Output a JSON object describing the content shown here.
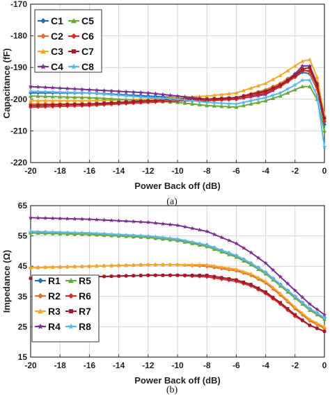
{
  "chart_data": [
    {
      "type": "line",
      "caption": "(a)",
      "xlabel": "Power Back off (dB)",
      "ylabel": "Capacitance (fF)",
      "xlim": [
        -20,
        0
      ],
      "ylim": [
        -220,
        -170
      ],
      "xticks": [
        -20,
        -18,
        -16,
        -14,
        -12,
        -10,
        -8,
        -6,
        -4,
        -2,
        0
      ],
      "yticks": [
        -170,
        -180,
        -190,
        -200,
        -210,
        -220
      ],
      "grid": true,
      "legend_position": "top-left",
      "series": [
        {
          "name": "C1",
          "color": "#1f6fb5",
          "marker": "diamond",
          "x": [
            -20,
            -16,
            -12,
            -10,
            -8,
            -6,
            -4,
            -3,
            -2,
            -1.5,
            -1,
            -0.5,
            0
          ],
          "y": [
            -198,
            -198,
            -199,
            -199.5,
            -200,
            -199.5,
            -197.5,
            -195.5,
            -193,
            -191.5,
            -192,
            -197,
            -208
          ]
        },
        {
          "name": "C2",
          "color": "#e0702a",
          "marker": "diamond",
          "x": [
            -20,
            -16,
            -12,
            -10,
            -8,
            -6,
            -4,
            -3,
            -2,
            -1.5,
            -1,
            -0.5,
            0
          ],
          "y": [
            -201.5,
            -201.5,
            -201,
            -200.5,
            -200,
            -199.5,
            -197,
            -195,
            -192,
            -190.5,
            -191.5,
            -197,
            -206
          ]
        },
        {
          "name": "C3",
          "color": "#f0a92e",
          "marker": "triangle",
          "x": [
            -20,
            -16,
            -12,
            -10,
            -8,
            -6,
            -4,
            -3,
            -2,
            -1.5,
            -1,
            -0.5,
            0
          ],
          "y": [
            -200.5,
            -200.5,
            -200,
            -199.5,
            -199,
            -198,
            -195,
            -192.5,
            -189.5,
            -188,
            -187.5,
            -193,
            -205
          ]
        },
        {
          "name": "C4",
          "color": "#7b2f8f",
          "marker": "star",
          "x": [
            -20,
            -16,
            -12,
            -10,
            -8,
            -6,
            -4,
            -3,
            -2,
            -1.5,
            -1,
            -0.5,
            0
          ],
          "y": [
            -196,
            -197,
            -198,
            -199,
            -200,
            -200,
            -198.5,
            -196,
            -192,
            -189.5,
            -189.5,
            -195,
            -207
          ]
        },
        {
          "name": "C5",
          "color": "#6aaa3a",
          "marker": "triangle",
          "x": [
            -20,
            -16,
            -12,
            -10,
            -8,
            -6,
            -4,
            -3,
            -2,
            -1.5,
            -1,
            -0.5,
            0
          ],
          "y": [
            -199,
            -199.5,
            -200.5,
            -201,
            -202,
            -202.5,
            -200.5,
            -199,
            -197,
            -196,
            -196,
            -200,
            -210
          ]
        },
        {
          "name": "C6",
          "color": "#d42a2a",
          "marker": "diamond",
          "x": [
            -20,
            -16,
            -12,
            -10,
            -8,
            -6,
            -4,
            -3,
            -2,
            -1.5,
            -1,
            -0.5,
            0
          ],
          "y": [
            -202.5,
            -202,
            -201,
            -200.5,
            -200.5,
            -200,
            -198,
            -196,
            -193,
            -191,
            -191,
            -196,
            -207
          ]
        },
        {
          "name": "C7",
          "color": "#9e1c2a",
          "marker": "square",
          "x": [
            -20,
            -16,
            -12,
            -10,
            -8,
            -6,
            -4,
            -3,
            -2,
            -1.5,
            -1,
            -0.5,
            0
          ],
          "y": [
            -202,
            -201.5,
            -200.5,
            -200,
            -200,
            -199.5,
            -197.5,
            -195.5,
            -192.5,
            -190.5,
            -190,
            -195.5,
            -206
          ]
        },
        {
          "name": "C8",
          "color": "#5cb8e6",
          "marker": "star",
          "x": [
            -20,
            -16,
            -12,
            -10,
            -8,
            -6,
            -4,
            -3,
            -2,
            -1.5,
            -1,
            -0.5,
            0
          ],
          "y": [
            -197.5,
            -198,
            -199.5,
            -200,
            -201,
            -201.5,
            -199.5,
            -198,
            -195.5,
            -194,
            -194,
            -199,
            -215
          ]
        }
      ]
    },
    {
      "type": "line",
      "caption": "(b)",
      "xlabel": "Power Back off (dB)",
      "ylabel": "Impedance (Ω)",
      "xlim": [
        -20,
        0
      ],
      "ylim": [
        15,
        65
      ],
      "xticks": [
        -20,
        -18,
        -16,
        -14,
        -12,
        -10,
        -8,
        -6,
        -4,
        -2,
        0
      ],
      "yticks": [
        15,
        25,
        35,
        45,
        55,
        65
      ],
      "grid": true,
      "legend_position": "bottom-left",
      "series": [
        {
          "name": "R1",
          "color": "#1f6fb5",
          "marker": "diamond",
          "x": [
            -20,
            -16,
            -12,
            -10,
            -8,
            -6,
            -5,
            -4,
            -3,
            -2,
            -1,
            0
          ],
          "y": [
            56,
            55.5,
            54.5,
            53.5,
            52,
            48.5,
            46,
            43,
            39,
            35,
            31,
            28
          ]
        },
        {
          "name": "R2",
          "color": "#e0702a",
          "marker": "diamond",
          "x": [
            -20,
            -16,
            -12,
            -10,
            -8,
            -6,
            -5,
            -4,
            -3,
            -2,
            -1,
            0
          ],
          "y": [
            44.5,
            45,
            45.5,
            45.5,
            45,
            43.5,
            42,
            39.5,
            35.5,
            31,
            27,
            24.5
          ]
        },
        {
          "name": "R3",
          "color": "#f0a92e",
          "marker": "triangle",
          "x": [
            -20,
            -16,
            -12,
            -10,
            -8,
            -6,
            -5,
            -4,
            -3,
            -2,
            -1,
            0
          ],
          "y": [
            44.5,
            45,
            45.5,
            45.5,
            45.5,
            44,
            42.5,
            40,
            36,
            31.5,
            27.5,
            25
          ]
        },
        {
          "name": "R4",
          "color": "#7b2f8f",
          "marker": "star",
          "x": [
            -20,
            -16,
            -12,
            -10,
            -8,
            -6,
            -5,
            -4,
            -3,
            -2,
            -1,
            0
          ],
          "y": [
            61,
            60.5,
            59.5,
            58.5,
            56.5,
            52.5,
            49.5,
            46,
            41.5,
            37,
            32.5,
            29
          ]
        },
        {
          "name": "R5",
          "color": "#6aaa3a",
          "marker": "triangle",
          "x": [
            -20,
            -16,
            -12,
            -10,
            -8,
            -6,
            -5,
            -4,
            -3,
            -2,
            -1,
            0
          ],
          "y": [
            56,
            55.5,
            54.5,
            53.5,
            51.5,
            48,
            45.5,
            42.5,
            38.5,
            34.5,
            30.5,
            27.5
          ]
        },
        {
          "name": "R6",
          "color": "#d42a2a",
          "marker": "diamond",
          "x": [
            -20,
            -16,
            -12,
            -10,
            -8,
            -6,
            -5,
            -4,
            -3,
            -2,
            -1,
            0
          ],
          "y": [
            41,
            41.5,
            42,
            42,
            41.5,
            40,
            38.5,
            36,
            32.5,
            28.5,
            25.5,
            23.5
          ]
        },
        {
          "name": "R7",
          "color": "#9e1c2a",
          "marker": "square",
          "x": [
            -20,
            -16,
            -12,
            -10,
            -8,
            -6,
            -5,
            -4,
            -3,
            -2,
            -1,
            0
          ],
          "y": [
            41,
            41.5,
            42,
            42,
            42,
            40.5,
            39,
            36.5,
            33,
            29,
            25.5,
            23.5
          ]
        },
        {
          "name": "R8",
          "color": "#5cb8e6",
          "marker": "star",
          "x": [
            -20,
            -16,
            -12,
            -10,
            -8,
            -6,
            -5,
            -4,
            -3,
            -2,
            -1,
            0
          ],
          "y": [
            56.5,
            56,
            55,
            54,
            52,
            48.5,
            46,
            43,
            39,
            35,
            31,
            28
          ]
        }
      ]
    }
  ]
}
